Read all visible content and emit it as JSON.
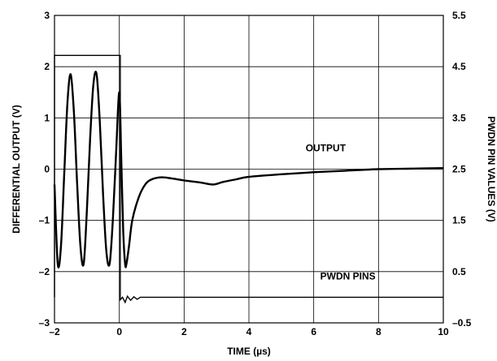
{
  "chart_data": {
    "type": "line",
    "xlabel": "TIME (µs)",
    "ylabel_left": "DIFFERENTIAL OUTPUT (V)",
    "ylabel_right": "PWDN PIN VALUES (V)",
    "xlim": [
      -2,
      10
    ],
    "ylim_left": [
      -3,
      3
    ],
    "ylim_right": [
      -0.5,
      5.5
    ],
    "x_ticks": [
      -2,
      0,
      2,
      4,
      6,
      8,
      10
    ],
    "x_tick_labels": [
      "–2",
      "0",
      "2",
      "4",
      "6",
      "8",
      "10"
    ],
    "y_left_ticks": [
      -3,
      -2,
      -1,
      0,
      1,
      2,
      3
    ],
    "y_left_tick_labels": [
      "–3",
      "–2",
      "–1",
      "0",
      "1",
      "2",
      "3"
    ],
    "y_right_ticks": [
      -0.5,
      0.5,
      1.5,
      2.5,
      3.5,
      4.5,
      5.5
    ],
    "y_right_tick_labels": [
      "–0.5",
      "0.5",
      "1.5",
      "2.5",
      "3.5",
      "4.5",
      "5.5"
    ],
    "grid": true,
    "annotations": [
      {
        "text": "OUTPUT",
        "x": 5.75,
        "y": 0.35
      },
      {
        "text": "PWDN PINS",
        "x": 6.2,
        "y": -2.15
      }
    ],
    "series": [
      {
        "name": "OUTPUT",
        "axis": "left",
        "x": [
          -2.0,
          -1.9,
          -1.8,
          -1.7,
          -1.6,
          -1.5,
          -1.4,
          -1.3,
          -1.2,
          -1.1,
          -1.0,
          -0.9,
          -0.8,
          -0.7,
          -0.6,
          -0.5,
          -0.4,
          -0.3,
          -0.2,
          -0.1,
          0.0,
          0.06,
          0.12,
          0.18,
          0.22,
          0.3,
          0.4,
          0.6,
          0.8,
          1.0,
          1.3,
          1.6,
          2.0,
          2.5,
          2.9,
          3.2,
          3.6,
          4.0,
          5.0,
          6.0,
          7.0,
          8.0,
          9.0,
          10.0
        ],
        "y": [
          -0.3,
          -1.85,
          -1.5,
          -0.1,
          1.3,
          1.85,
          1.1,
          -0.3,
          -1.5,
          -1.85,
          -0.8,
          0.6,
          1.65,
          1.85,
          0.9,
          -0.5,
          -1.6,
          -1.85,
          -1.0,
          0.3,
          1.5,
          0.2,
          -1.2,
          -1.85,
          -1.85,
          -1.5,
          -1.0,
          -0.55,
          -0.3,
          -0.2,
          -0.16,
          -0.18,
          -0.22,
          -0.26,
          -0.3,
          -0.25,
          -0.2,
          -0.15,
          -0.1,
          -0.06,
          -0.03,
          0.0,
          0.01,
          0.02
        ]
      },
      {
        "name": "PWDN PINS",
        "axis": "right",
        "x": [
          -2.0,
          -2.0,
          -0.05,
          -0.05,
          0.03,
          0.03,
          0.1,
          0.18,
          0.25,
          0.35,
          0.45,
          0.55,
          0.65,
          10.0
        ],
        "y": [
          0.0,
          4.72,
          4.72,
          4.72,
          4.72,
          -0.05,
          0.0,
          -0.1,
          0.02,
          -0.06,
          0.01,
          -0.04,
          0.0,
          0.0
        ]
      }
    ]
  }
}
